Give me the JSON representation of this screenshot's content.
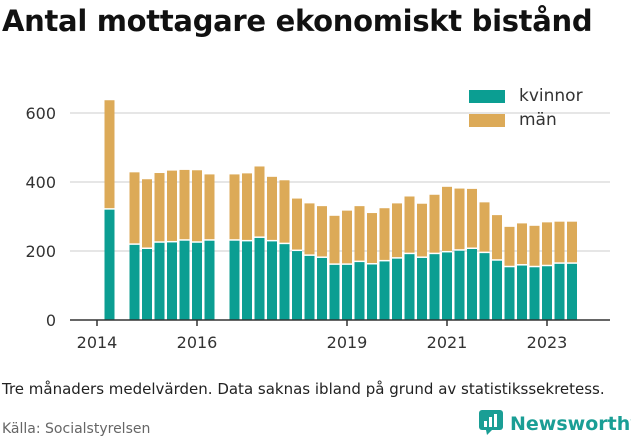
{
  "title": "Antal mottagare ekonomiskt bistånd",
  "note": "Tre månaders medelvärden. Data saknas ibland på grund av statistikssekretess.",
  "source": "Källa: Socialstyrelsen",
  "brand": {
    "name": "Newsworthy",
    "logo_icon": "chart-logo-icon"
  },
  "colors": {
    "kvinnor": "#0b9e92",
    "man": "#dcaa58",
    "grid": "#dddddd",
    "axis": "#333333"
  },
  "chart_data": {
    "type": "bar",
    "stacked": true,
    "ylim": [
      0,
      650
    ],
    "yticks": [
      "0",
      "200",
      "400",
      "600"
    ],
    "ytick_values": [
      0,
      200,
      400,
      600
    ],
    "xticks": [
      "2014",
      "2016",
      "2019",
      "2021",
      "2023"
    ],
    "xtick_positions": [
      2014.0,
      2016.0,
      2019.0,
      2021.0,
      2023.0
    ],
    "grid": true,
    "legend_position": "top-right",
    "x": [
      2014.25,
      2014.75,
      2015.0,
      2015.25,
      2015.5,
      2015.75,
      2016.0,
      2016.25,
      2016.75,
      2017.0,
      2017.25,
      2017.5,
      2017.75,
      2018.0,
      2018.25,
      2018.5,
      2018.75,
      2019.0,
      2019.25,
      2019.5,
      2019.75,
      2020.0,
      2020.25,
      2020.5,
      2020.75,
      2021.0,
      2021.25,
      2021.5,
      2021.75,
      2022.0,
      2022.25,
      2022.5,
      2022.75,
      2023.0,
      2023.25,
      2023.5
    ],
    "series": [
      {
        "name": "kvinnor",
        "values": [
          322,
          220,
          208,
          226,
          227,
          232,
          226,
          232,
          232,
          230,
          240,
          230,
          222,
          202,
          188,
          182,
          162,
          162,
          170,
          163,
          172,
          180,
          193,
          182,
          193,
          198,
          203,
          208,
          196,
          174,
          155,
          160,
          155,
          158,
          165,
          165
        ]
      },
      {
        "name": "män",
        "values": [
          315,
          208,
          200,
          200,
          206,
          203,
          208,
          190,
          190,
          195,
          205,
          185,
          183,
          150,
          150,
          148,
          140,
          155,
          160,
          147,
          152,
          158,
          165,
          155,
          170,
          188,
          178,
          172,
          145,
          130,
          115,
          120,
          118,
          125,
          120,
          120
        ]
      }
    ]
  }
}
